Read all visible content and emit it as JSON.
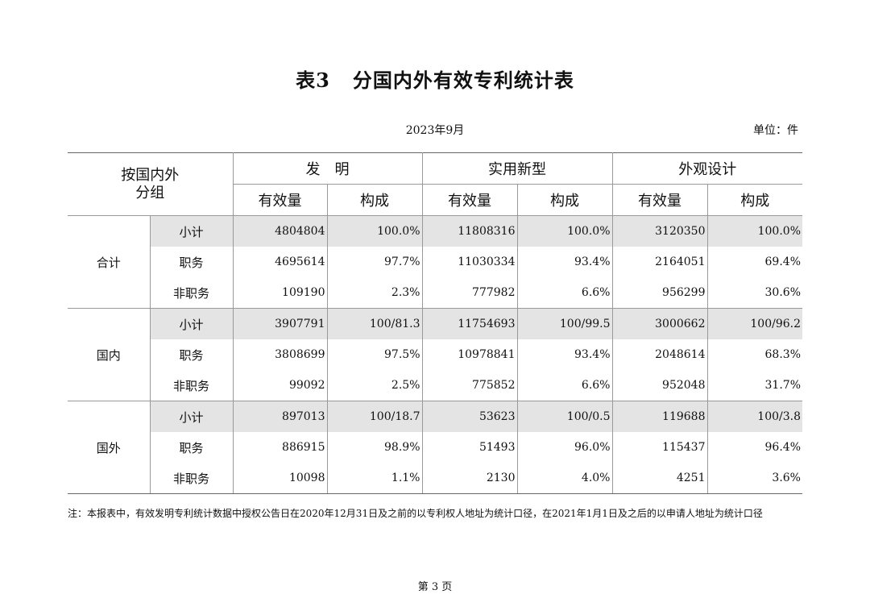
{
  "title": "表3",
  "title_rest": "分国内外有效专利统计表",
  "date": "2023年9月",
  "unit": "单位：件",
  "headers": {
    "group_col_line1": "按国内外",
    "group_col_line2": "分组",
    "invention": "发　明",
    "utility": "实用新型",
    "design": "外观设计",
    "count": "有效量",
    "share": "构成"
  },
  "groups": [
    {
      "name": "合计",
      "rows": [
        {
          "sub": "小计",
          "inv_n": "4804804",
          "inv_p": "100.0%",
          "uti_n": "11808316",
          "uti_p": "100.0%",
          "des_n": "3120350",
          "des_p": "100.0%"
        },
        {
          "sub": "职务",
          "inv_n": "4695614",
          "inv_p": "97.7%",
          "uti_n": "11030334",
          "uti_p": "93.4%",
          "des_n": "2164051",
          "des_p": "69.4%"
        },
        {
          "sub": "非职务",
          "inv_n": "109190",
          "inv_p": "2.3%",
          "uti_n": "777982",
          "uti_p": "6.6%",
          "des_n": "956299",
          "des_p": "30.6%"
        }
      ]
    },
    {
      "name": "国内",
      "rows": [
        {
          "sub": "小计",
          "inv_n": "3907791",
          "inv_p": "100/81.3",
          "uti_n": "11754693",
          "uti_p": "100/99.5",
          "des_n": "3000662",
          "des_p": "100/96.2"
        },
        {
          "sub": "职务",
          "inv_n": "3808699",
          "inv_p": "97.5%",
          "uti_n": "10978841",
          "uti_p": "93.4%",
          "des_n": "2048614",
          "des_p": "68.3%"
        },
        {
          "sub": "非职务",
          "inv_n": "99092",
          "inv_p": "2.5%",
          "uti_n": "775852",
          "uti_p": "6.6%",
          "des_n": "952048",
          "des_p": "31.7%"
        }
      ]
    },
    {
      "name": "国外",
      "rows": [
        {
          "sub": "小计",
          "inv_n": "897013",
          "inv_p": "100/18.7",
          "uti_n": "53623",
          "uti_p": "100/0.5",
          "des_n": "119688",
          "des_p": "100/3.8"
        },
        {
          "sub": "职务",
          "inv_n": "886915",
          "inv_p": "98.9%",
          "uti_n": "51493",
          "uti_p": "96.0%",
          "des_n": "115437",
          "des_p": "96.4%"
        },
        {
          "sub": "非职务",
          "inv_n": "10098",
          "inv_p": "1.1%",
          "uti_n": "2130",
          "uti_p": "4.0%",
          "des_n": "4251",
          "des_p": "3.6%"
        }
      ]
    }
  ],
  "note": "注：本报表中，有效发明专利统计数据中授权公告日在2020年12月31日及之前的以专利权人地址为统计口径，在2021年1月1日及之后的以申请人地址为统计口径",
  "page_label": "第 3 页"
}
